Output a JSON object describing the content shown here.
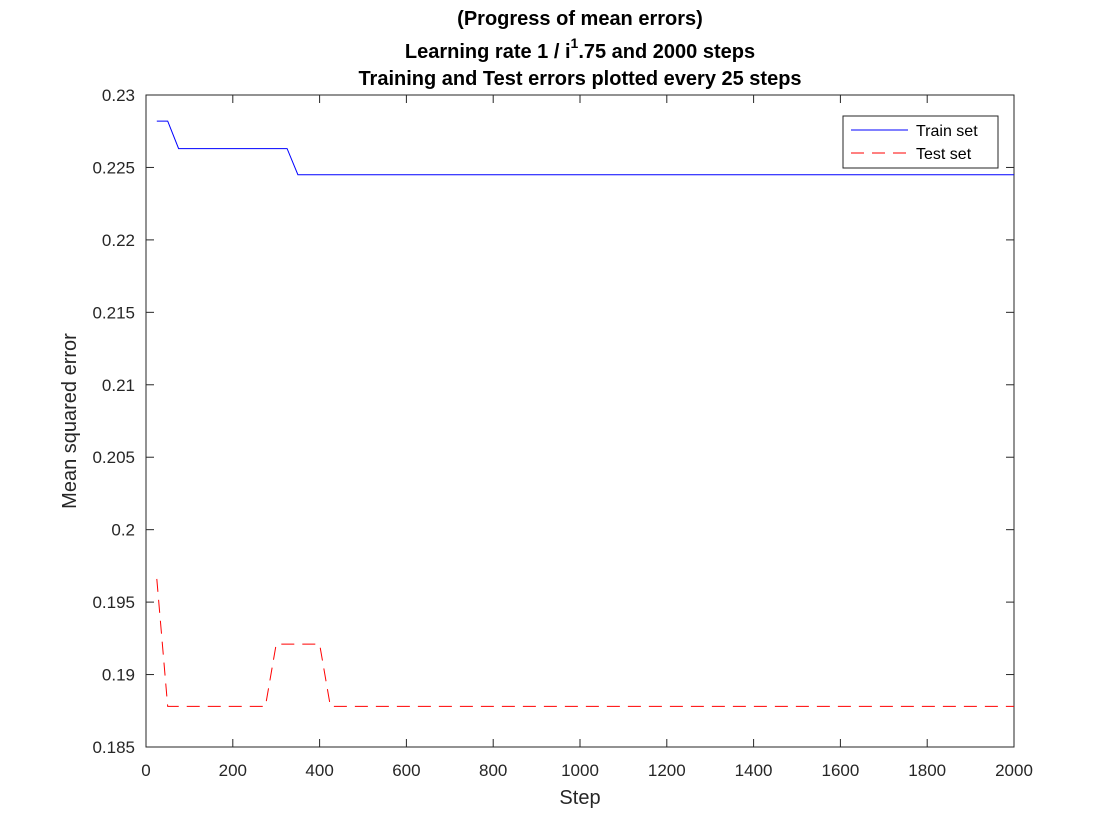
{
  "chart_data": {
    "type": "line",
    "title_lines": [
      "(Progress of mean errors)",
      "Learning rate  1 / i",
      "Training and Test errors plotted every 25 steps"
    ],
    "title_superscript": "1",
    "title_suffix": ".75 and 2000 steps",
    "xlabel": "Step",
    "ylabel": "Mean squared error",
    "xlim": [
      0,
      2000
    ],
    "ylim": [
      0.185,
      0.23
    ],
    "xticks": [
      0,
      200,
      400,
      600,
      800,
      1000,
      1200,
      1400,
      1600,
      1800,
      2000
    ],
    "xtick_labels": [
      "0",
      "200",
      "400",
      "600",
      "800",
      "1000",
      "1200",
      "1400",
      "1600",
      "1800",
      "2000"
    ],
    "yticks": [
      0.185,
      0.19,
      0.195,
      0.2,
      0.205,
      0.21,
      0.215,
      0.22,
      0.225,
      0.23
    ],
    "ytick_labels": [
      "0.185",
      "0.19",
      "0.195",
      "0.2",
      "0.205",
      "0.21",
      "0.215",
      "0.22",
      "0.225",
      "0.23"
    ],
    "grid": false,
    "legend_position": "top-right",
    "series": [
      {
        "name": "Train set",
        "color": "#0000ff",
        "style": "solid",
        "x": [
          25,
          50,
          75,
          100,
          125,
          150,
          175,
          200,
          225,
          250,
          275,
          300,
          325,
          350,
          375,
          400,
          425,
          450,
          475,
          500,
          525,
          550,
          575,
          600,
          625,
          650,
          675,
          700,
          725,
          750,
          775,
          800,
          825,
          850,
          875,
          900,
          925,
          950,
          975,
          1000,
          1025,
          1050,
          1075,
          1100,
          1125,
          1150,
          1175,
          1200,
          1225,
          1250,
          1275,
          1300,
          1325,
          1350,
          1375,
          1400,
          1425,
          1450,
          1475,
          1500,
          1525,
          1550,
          1575,
          1600,
          1625,
          1650,
          1675,
          1700,
          1725,
          1750,
          1775,
          1800,
          1825,
          1850,
          1875,
          1900,
          1925,
          1950,
          1975,
          2000
        ],
        "y": [
          0.2282,
          0.2282,
          0.2263,
          0.2263,
          0.2263,
          0.2263,
          0.2263,
          0.2263,
          0.2263,
          0.2263,
          0.2263,
          0.2263,
          0.2263,
          0.2245,
          0.2245,
          0.2245,
          0.2245,
          0.2245,
          0.2245,
          0.2245,
          0.2245,
          0.2245,
          0.2245,
          0.2245,
          0.2245,
          0.2245,
          0.2245,
          0.2245,
          0.2245,
          0.2245,
          0.2245,
          0.2245,
          0.2245,
          0.2245,
          0.2245,
          0.2245,
          0.2245,
          0.2245,
          0.2245,
          0.2245,
          0.2245,
          0.2245,
          0.2245,
          0.2245,
          0.2245,
          0.2245,
          0.2245,
          0.2245,
          0.2245,
          0.2245,
          0.2245,
          0.2245,
          0.2245,
          0.2245,
          0.2245,
          0.2245,
          0.2245,
          0.2245,
          0.2245,
          0.2245,
          0.2245,
          0.2245,
          0.2245,
          0.2245,
          0.2245,
          0.2245,
          0.2245,
          0.2245,
          0.2245,
          0.2245,
          0.2245,
          0.2245,
          0.2245,
          0.2245,
          0.2245,
          0.2245,
          0.2245,
          0.2245,
          0.2245,
          0.2245
        ]
      },
      {
        "name": "Test set",
        "color": "#ff0000",
        "style": "dashed",
        "x": [
          25,
          50,
          75,
          100,
          125,
          150,
          175,
          200,
          225,
          250,
          275,
          300,
          325,
          350,
          375,
          400,
          425,
          450,
          475,
          500,
          525,
          550,
          575,
          600,
          625,
          650,
          675,
          700,
          725,
          750,
          775,
          800,
          825,
          850,
          875,
          900,
          925,
          950,
          975,
          1000,
          1025,
          1050,
          1075,
          1100,
          1125,
          1150,
          1175,
          1200,
          1225,
          1250,
          1275,
          1300,
          1325,
          1350,
          1375,
          1400,
          1425,
          1450,
          1475,
          1500,
          1525,
          1550,
          1575,
          1600,
          1625,
          1650,
          1675,
          1700,
          1725,
          1750,
          1775,
          1800,
          1825,
          1850,
          1875,
          1900,
          1925,
          1950,
          1975,
          2000
        ],
        "y": [
          0.1966,
          0.1878,
          0.1878,
          0.1878,
          0.1878,
          0.1878,
          0.1878,
          0.1878,
          0.1878,
          0.1878,
          0.1878,
          0.1921,
          0.1921,
          0.1921,
          0.1921,
          0.1921,
          0.1878,
          0.1878,
          0.1878,
          0.1878,
          0.1878,
          0.1878,
          0.1878,
          0.1878,
          0.1878,
          0.1878,
          0.1878,
          0.1878,
          0.1878,
          0.1878,
          0.1878,
          0.1878,
          0.1878,
          0.1878,
          0.1878,
          0.1878,
          0.1878,
          0.1878,
          0.1878,
          0.1878,
          0.1878,
          0.1878,
          0.1878,
          0.1878,
          0.1878,
          0.1878,
          0.1878,
          0.1878,
          0.1878,
          0.1878,
          0.1878,
          0.1878,
          0.1878,
          0.1878,
          0.1878,
          0.1878,
          0.1878,
          0.1878,
          0.1878,
          0.1878,
          0.1878,
          0.1878,
          0.1878,
          0.1878,
          0.1878,
          0.1878,
          0.1878,
          0.1878,
          0.1878,
          0.1878,
          0.1878,
          0.1878,
          0.1878,
          0.1878,
          0.1878,
          0.1878,
          0.1878,
          0.1878,
          0.1878,
          0.1878
        ]
      }
    ]
  }
}
